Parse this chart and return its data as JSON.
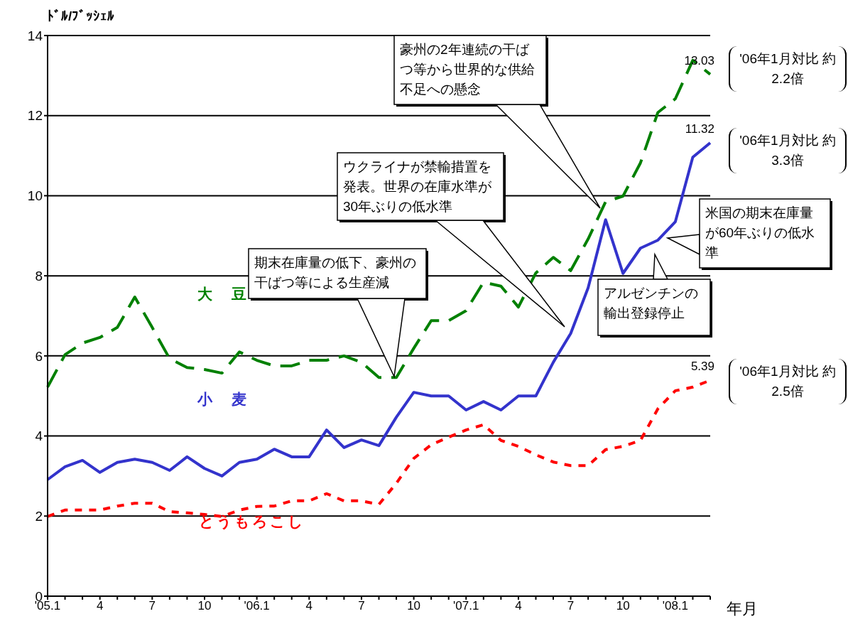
{
  "chart_data": {
    "type": "line",
    "ylabel": "ﾄﾞﾙ/ﾌﾞｯｼｪﾙ",
    "xlabel": "年月",
    "categories": [
      "'05.1",
      null,
      null,
      "4",
      null,
      null,
      "7",
      null,
      null,
      "10",
      null,
      null,
      "'06.1",
      null,
      null,
      "4",
      null,
      null,
      "7",
      null,
      null,
      "10",
      null,
      null,
      "'07.1",
      null,
      null,
      "4",
      null,
      null,
      "7",
      null,
      null,
      "10",
      null,
      null,
      "'08.1",
      null,
      null
    ],
    "series": [
      {
        "name": "大　豆",
        "color": "#008000",
        "line_style": "dashed",
        "values": [
          5.22,
          6.03,
          6.32,
          6.46,
          6.71,
          7.47,
          6.71,
          5.93,
          5.71,
          5.66,
          5.57,
          6.1,
          5.89,
          5.75,
          5.75,
          5.89,
          5.89,
          6.0,
          5.84,
          5.46,
          5.46,
          6.19,
          6.88,
          6.88,
          7.13,
          7.84,
          7.74,
          7.22,
          8.07,
          8.46,
          8.13,
          8.92,
          9.85,
          9.99,
          10.82,
          12.08,
          12.42,
          13.38,
          13.03
        ],
        "value_labels": [
          null,
          null,
          null,
          null,
          null,
          null,
          null,
          null,
          null,
          null,
          null,
          null,
          null,
          null,
          null,
          null,
          null,
          null,
          null,
          null,
          null,
          null,
          null,
          null,
          null,
          null,
          null,
          null,
          null,
          null,
          null,
          null,
          null,
          null,
          null,
          null,
          null,
          null,
          "13.03"
        ]
      },
      {
        "name": "小　麦",
        "color": "#3333cc",
        "line_style": "solid",
        "values": [
          2.91,
          3.23,
          3.39,
          3.09,
          3.34,
          3.42,
          3.34,
          3.14,
          3.48,
          3.19,
          3.0,
          3.34,
          3.42,
          3.67,
          3.48,
          3.48,
          4.15,
          3.71,
          3.9,
          3.76,
          4.47,
          5.09,
          5.0,
          5.0,
          4.65,
          4.86,
          4.65,
          5.0,
          5.0,
          5.84,
          6.56,
          7.7,
          9.4,
          8.06,
          8.69,
          8.89,
          9.35,
          10.96,
          11.32
        ],
        "value_labels": [
          null,
          null,
          null,
          null,
          null,
          null,
          null,
          null,
          null,
          null,
          null,
          null,
          null,
          null,
          null,
          null,
          null,
          null,
          null,
          null,
          null,
          null,
          null,
          null,
          null,
          null,
          null,
          null,
          null,
          null,
          null,
          null,
          null,
          null,
          null,
          null,
          null,
          null,
          "11.32"
        ]
      },
      {
        "name": "とうもろこし",
        "color": "#ff0000",
        "line_style": "dotted",
        "values": [
          1.99,
          2.15,
          2.15,
          2.15,
          2.25,
          2.32,
          2.32,
          2.11,
          2.08,
          2.04,
          1.99,
          2.15,
          2.24,
          2.25,
          2.38,
          2.38,
          2.56,
          2.38,
          2.38,
          2.29,
          2.82,
          3.44,
          3.78,
          3.97,
          4.15,
          4.28,
          3.89,
          3.74,
          3.53,
          3.35,
          3.26,
          3.26,
          3.66,
          3.74,
          3.89,
          4.68,
          5.13,
          5.22,
          5.39
        ],
        "value_labels": [
          null,
          null,
          null,
          null,
          null,
          null,
          null,
          null,
          null,
          null,
          null,
          null,
          null,
          null,
          null,
          null,
          null,
          null,
          null,
          null,
          null,
          null,
          null,
          null,
          null,
          null,
          null,
          null,
          null,
          null,
          null,
          null,
          null,
          null,
          null,
          null,
          null,
          null,
          "5.39"
        ]
      }
    ],
    "ylim": [
      0,
      14
    ],
    "yticks": [
      0,
      2,
      4,
      6,
      8,
      10,
      12,
      14
    ],
    "grid": "y",
    "legend": false,
    "marker": "none",
    "annotations": [
      "期末在庫量の低下、豪州の干ばつ等による生産減",
      "ウクライナが禁輸措置を発表。世界の在庫水準が30年ぶりの低水準",
      "豪州の2年連続の干ばつ等から世界的な供給不足への懸念",
      "米国の期末在庫量が60年ぶりの低水準",
      "アルゼンチンの輸出登録停止",
      "'06年1月対比 約2.2倍",
      "'06年1月対比 約3.3倍",
      "'06年1月対比 約2.5倍"
    ]
  }
}
